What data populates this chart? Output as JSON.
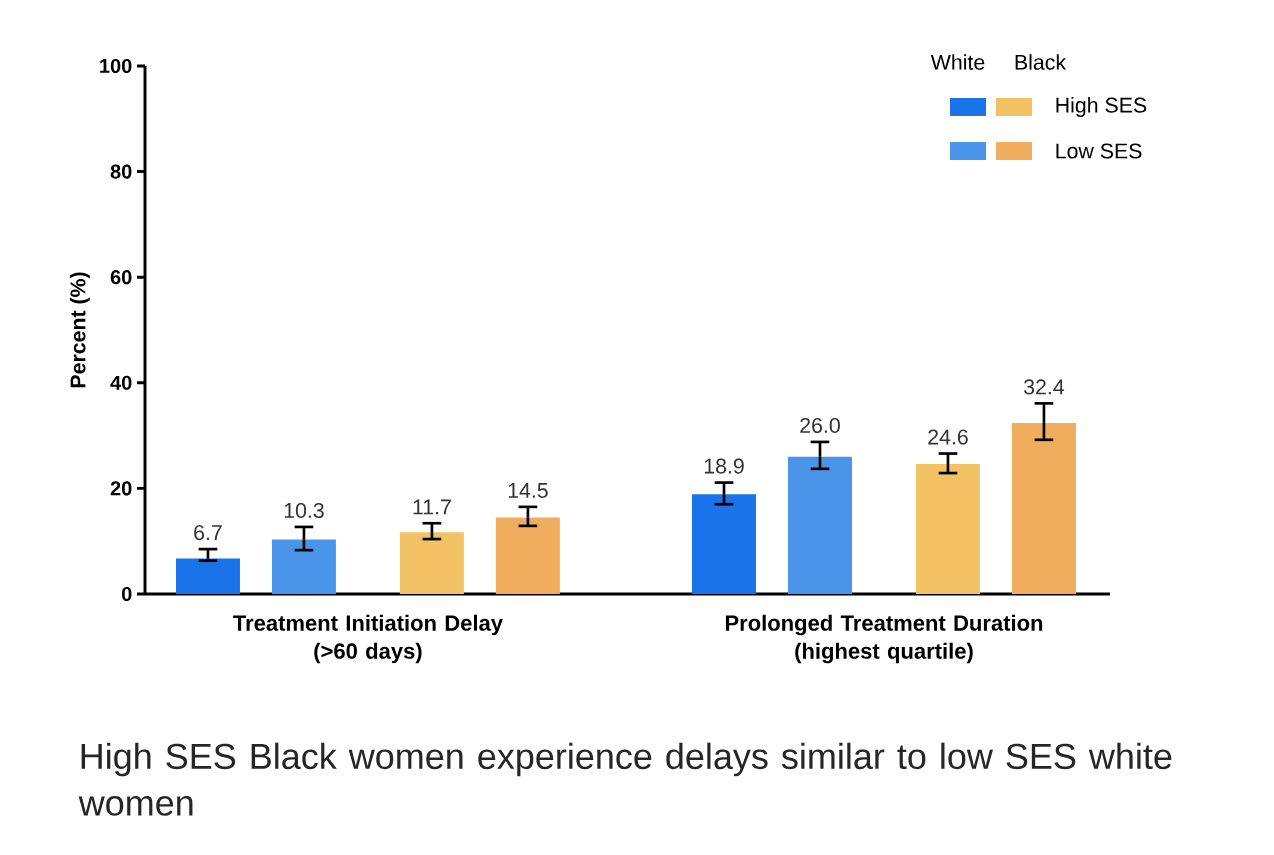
{
  "chart_data": {
    "type": "bar",
    "categories": [
      "Treatment Initiation Delay (>60 days)",
      "Prolonged Treatment Duration (highest quartile)"
    ],
    "ylabel": "Percent (%)",
    "ylim": [
      0,
      100
    ],
    "yticks": [
      0,
      20,
      40,
      60,
      80,
      100
    ],
    "series": [
      {
        "color": "#1a73e8",
        "values": [
          6.7,
          18.9
        ],
        "value_labels": [
          "6.7",
          "18.9"
        ],
        "errors": [
          [
            6.3,
            8.5
          ],
          [
            17.0,
            21.1
          ]
        ]
      },
      {
        "color": "#4a95ea",
        "values": [
          10.3,
          26.0
        ],
        "value_labels": [
          "10.3",
          "26.0"
        ],
        "errors": [
          [
            8.3,
            12.7
          ],
          [
            23.7,
            28.8
          ]
        ]
      },
      {
        "name": "High SES",
        "color": "#f3c265",
        "values": [
          11.7,
          24.6
        ],
        "value_labels": [
          "11.7",
          "24.6"
        ],
        "errors": [
          [
            10.4,
            13.4
          ],
          [
            22.9,
            26.6
          ]
        ]
      },
      {
        "name": "Low SES",
        "color": "#f0ad5e",
        "values": [
          14.5,
          32.4
        ],
        "value_labels": [
          "14.5",
          "32.4"
        ],
        "errors": [
          [
            12.9,
            16.5
          ],
          [
            29.2,
            36.1
          ]
        ]
      }
    ],
    "grid": false,
    "legend": "top right",
    "annotations": [
      "White",
      "Black",
      "High SES Black women experience delays similar to low SES white women"
    ]
  }
}
